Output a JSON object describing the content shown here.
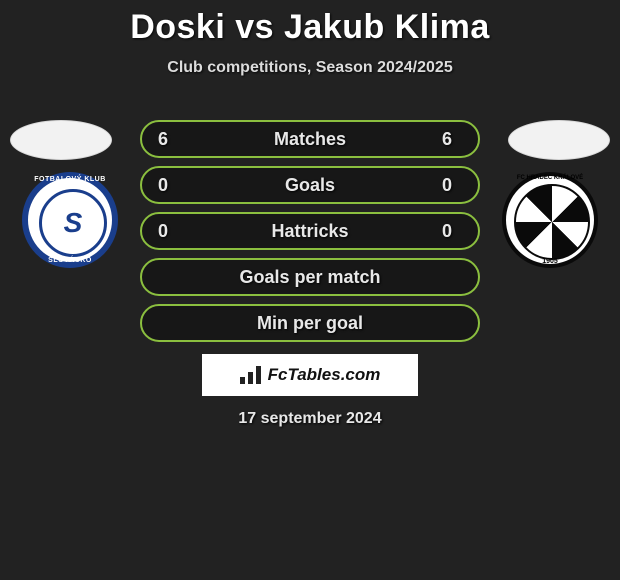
{
  "title": "Doski vs Jakub Klima",
  "subtitle": "Club competitions, Season 2024/2025",
  "date": "17 september 2024",
  "colors": {
    "background": "#222222",
    "row_border": "#8bbf3f",
    "row_bg": "rgba(0,0,0,0.3)",
    "text": "#e8e8e8",
    "box_bg": "#ffffff",
    "left_badge_primary": "#1a3e8c",
    "left_badge_bg": "#ffffff",
    "right_badge_primary": "#0a0a0a",
    "right_badge_bg": "#ffffff"
  },
  "rows": [
    {
      "left": "6",
      "label": "Matches",
      "right": "6"
    },
    {
      "left": "0",
      "label": "Goals",
      "right": "0"
    },
    {
      "left": "0",
      "label": "Hattricks",
      "right": "0"
    },
    {
      "left": "",
      "label": "Goals per match",
      "right": ""
    },
    {
      "left": "",
      "label": "Min per goal",
      "right": ""
    }
  ],
  "left_club": {
    "arc_top": "FOTBALOVÝ KLUB",
    "monogram": "S",
    "arc_bottom": "SLOVÁCKO"
  },
  "right_club": {
    "arc_top": "FC HRADEC KRÁLOVÉ",
    "year": "1905"
  },
  "footer_brand": "FcTables.com",
  "footer_logo_bars": [
    7,
    12,
    18
  ]
}
